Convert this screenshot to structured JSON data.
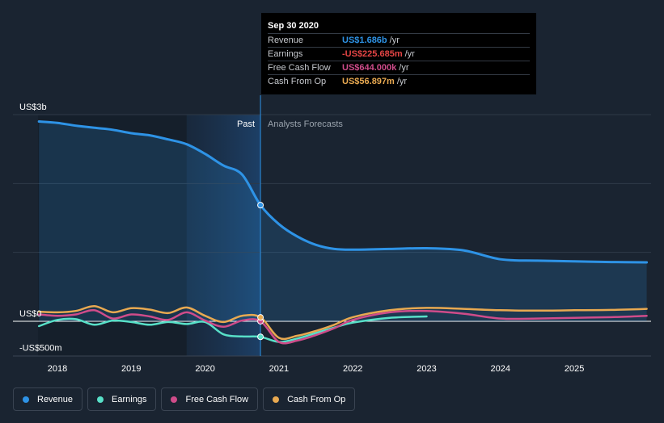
{
  "tooltip": {
    "date": "Sep 30 2020",
    "rows": [
      {
        "label": "Revenue",
        "value": "US$1.686b",
        "unit": "/yr",
        "color": "#2e93e6"
      },
      {
        "label": "Earnings",
        "value": "-US$225.685m",
        "unit": "/yr",
        "color": "#e64545"
      },
      {
        "label": "Free Cash Flow",
        "value": "US$644.000k",
        "unit": "/yr",
        "color": "#cf4c8a"
      },
      {
        "label": "Cash From Op",
        "value": "US$56.897m",
        "unit": "/yr",
        "color": "#e8a951"
      }
    ]
  },
  "legend": [
    {
      "label": "Revenue",
      "color": "#2e93e6"
    },
    {
      "label": "Earnings",
      "color": "#58e0c8"
    },
    {
      "label": "Free Cash Flow",
      "color": "#cf4c8a"
    },
    {
      "label": "Cash From Op",
      "color": "#e8a951"
    }
  ],
  "chart_data": {
    "type": "line",
    "y_tick_labels": [
      {
        "label": "US$3b",
        "value": 3000
      },
      {
        "label": "US$0",
        "value": 0
      },
      {
        "label": "-US$500m",
        "value": -500
      }
    ],
    "past_label": "Past",
    "forecast_label": "Analysts Forecasts",
    "x_ticks": [
      "2018",
      "2019",
      "2020",
      "2021",
      "2022",
      "2023",
      "2024",
      "2025"
    ],
    "xlim": [
      2017.6,
      2025.98
    ],
    "ylim": [
      -500,
      3000
    ],
    "divider_x": 2020.75,
    "shade_start": 2019.75,
    "grid": true,
    "series": [
      {
        "name": "Revenue",
        "color": "#2e93e6",
        "fill": true,
        "x": [
          2017.75,
          2018.0,
          2018.25,
          2018.5,
          2018.75,
          2019.0,
          2019.25,
          2019.5,
          2019.75,
          2020.0,
          2020.25,
          2020.5,
          2020.75,
          2021.0,
          2021.25,
          2021.5,
          2021.75,
          2022.0,
          2022.5,
          2023.0,
          2023.5,
          2024.0,
          2024.5,
          2025.0,
          2025.5,
          2025.98
        ],
        "y": [
          2900,
          2880,
          2840,
          2810,
          2780,
          2730,
          2700,
          2640,
          2570,
          2430,
          2260,
          2130,
          1686,
          1410,
          1230,
          1110,
          1050,
          1040,
          1050,
          1060,
          1030,
          900,
          880,
          870,
          860,
          855
        ]
      },
      {
        "name": "Earnings",
        "color": "#58e0c8",
        "x": [
          2017.75,
          2018.0,
          2018.25,
          2018.5,
          2018.75,
          2019.0,
          2019.25,
          2019.5,
          2019.75,
          2020.0,
          2020.25,
          2020.5,
          2020.75,
          2021.0,
          2021.25,
          2021.5,
          2021.75,
          2022.0,
          2022.5,
          2023.0
        ],
        "y": [
          -70,
          20,
          30,
          -50,
          10,
          -10,
          -50,
          -10,
          -40,
          -10,
          -190,
          -220,
          -225.685,
          -300,
          -250,
          -170,
          -90,
          -20,
          50,
          70
        ]
      },
      {
        "name": "Free Cash Flow",
        "color": "#cf4c8a",
        "x": [
          2017.75,
          2018.0,
          2018.25,
          2018.5,
          2018.75,
          2019.0,
          2019.25,
          2019.5,
          2019.75,
          2020.0,
          2020.25,
          2020.5,
          2020.75,
          2021.0,
          2021.25,
          2021.5,
          2021.75,
          2022.0,
          2022.5,
          2023.0,
          2023.5,
          2024.0,
          2024.5,
          2025.0,
          2025.5,
          2025.98
        ],
        "y": [
          100,
          80,
          100,
          160,
          40,
          100,
          70,
          20,
          130,
          10,
          -80,
          10,
          0.644,
          -300,
          -280,
          -200,
          -100,
          20,
          130,
          150,
          110,
          40,
          40,
          50,
          60,
          80
        ]
      },
      {
        "name": "Cash From Op",
        "color": "#e8a951",
        "x": [
          2017.75,
          2018.0,
          2018.25,
          2018.5,
          2018.75,
          2019.0,
          2019.25,
          2019.5,
          2019.75,
          2020.0,
          2020.25,
          2020.5,
          2020.75,
          2021.0,
          2021.25,
          2021.5,
          2021.75,
          2022.0,
          2022.5,
          2023.0,
          2023.5,
          2024.0,
          2024.5,
          2025.0,
          2025.5,
          2025.98
        ],
        "y": [
          140,
          130,
          150,
          220,
          130,
          190,
          170,
          120,
          200,
          80,
          -10,
          80,
          56.897,
          -240,
          -210,
          -140,
          -50,
          60,
          160,
          195,
          180,
          160,
          155,
          160,
          165,
          180
        ]
      }
    ]
  }
}
